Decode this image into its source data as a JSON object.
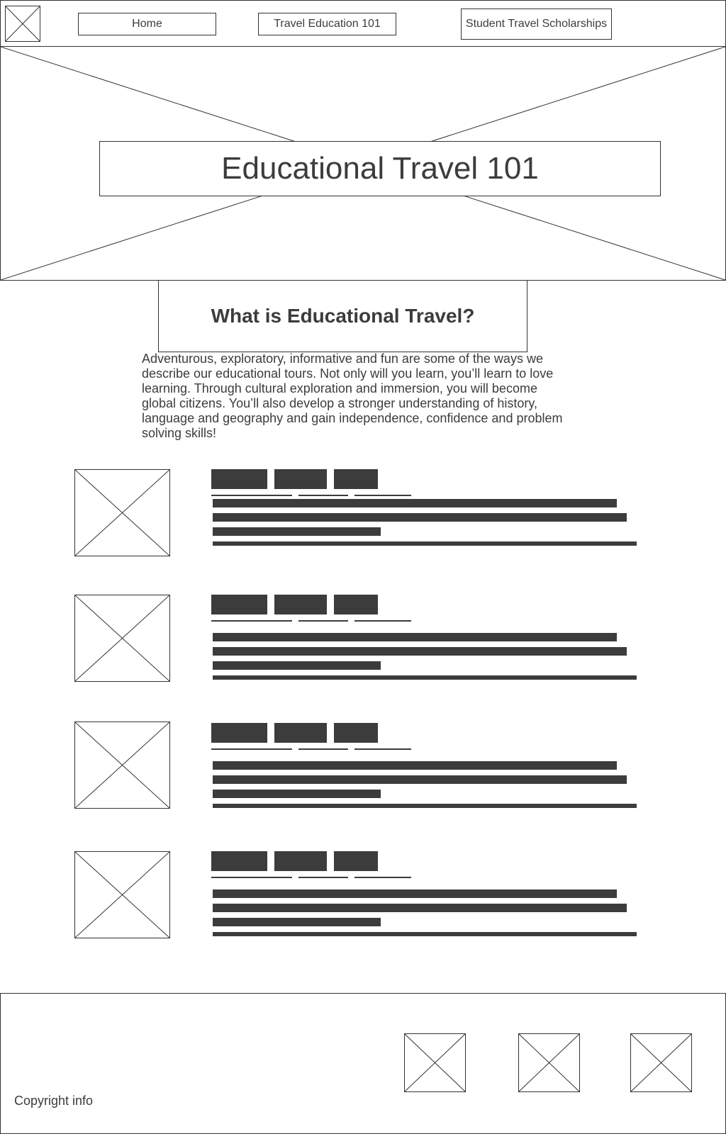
{
  "header": {
    "nav": [
      {
        "label": "Home"
      },
      {
        "label": "Travel Education 101"
      },
      {
        "label": "Student Travel Scholarships"
      }
    ]
  },
  "hero": {
    "title": "Educational Travel 101"
  },
  "intro": {
    "heading": "What is Educational Travel?",
    "body": "Adventurous, exploratory, informative and fun are some of the ways we describe our educational tours. Not only will you learn, you’ll learn to love learning. Through cultural exploration and immersion, you will become global citizens. You’ll also develop a stronger understanding of history, language and geography and gain independence, confidence and problem solving skills!"
  },
  "footer": {
    "copyright": "Copyright info"
  }
}
